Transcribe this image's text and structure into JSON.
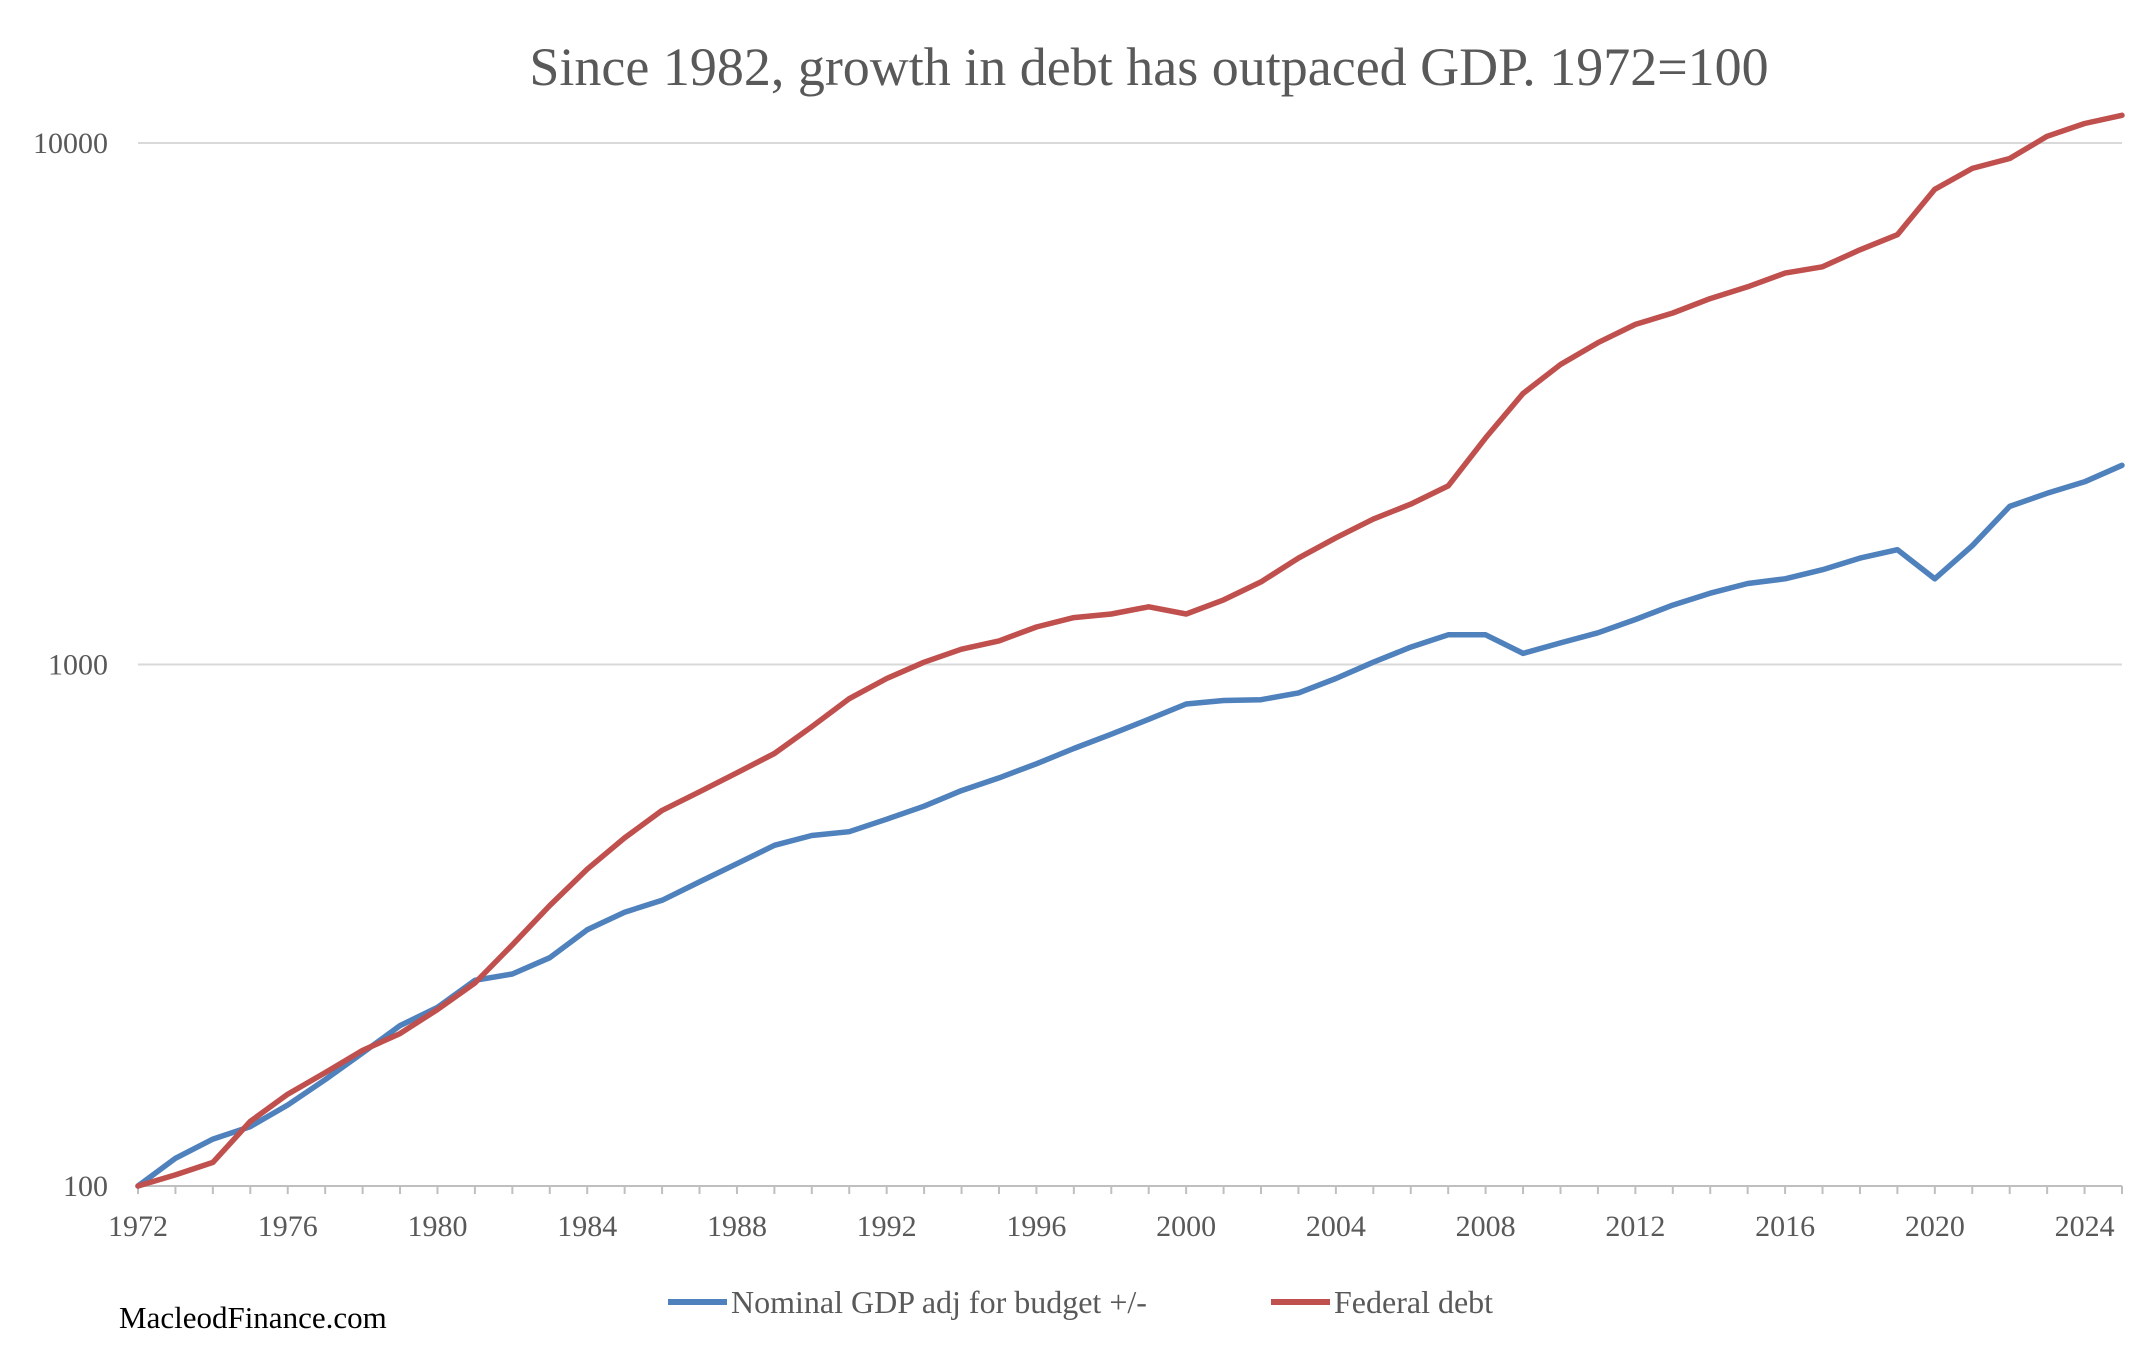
{
  "chart_data": {
    "type": "line",
    "title": "Since 1982, growth in debt has outpaced GDP. 1972=100",
    "xlabel": "",
    "ylabel": "",
    "y_scale": "log",
    "ylim": [
      100,
      10000
    ],
    "xlim": [
      1972,
      2025
    ],
    "y_ticks": [
      "100",
      "1000",
      "10000"
    ],
    "x_ticks": [
      "1972",
      "1976",
      "1980",
      "1984",
      "1988",
      "1992",
      "1996",
      "2000",
      "2004",
      "2008",
      "2012",
      "2016",
      "2020",
      "2024"
    ],
    "grid": true,
    "legend_position": "bottom",
    "x": [
      1972,
      1973,
      1974,
      1975,
      1976,
      1977,
      1978,
      1979,
      1980,
      1981,
      1982,
      1983,
      1984,
      1985,
      1986,
      1987,
      1988,
      1989,
      1990,
      1991,
      1992,
      1993,
      1994,
      1995,
      1996,
      1997,
      1998,
      1999,
      2000,
      2001,
      2002,
      2003,
      2004,
      2005,
      2006,
      2007,
      2008,
      2009,
      2010,
      2011,
      2012,
      2013,
      2014,
      2015,
      2016,
      2017,
      2018,
      2019,
      2020,
      2021,
      2022,
      2023,
      2024,
      2025
    ],
    "series": [
      {
        "name": "Nominal GDP adj for budget +/-",
        "color": "#4f81bd",
        "values": [
          100,
          113,
          123,
          130,
          143,
          160,
          180,
          203,
          220,
          248,
          255,
          274,
          310,
          335,
          353,
          383,
          415,
          450,
          470,
          478,
          505,
          535,
          573,
          606,
          645,
          690,
          735,
          785,
          840,
          853,
          856,
          882,
          940,
          1010,
          1080,
          1140,
          1140,
          1050,
          1100,
          1150,
          1220,
          1300,
          1370,
          1430,
          1460,
          1520,
          1600,
          1660,
          1460,
          1690,
          2010,
          2130,
          2240,
          2410
        ]
      },
      {
        "name": "Federal debt",
        "color": "#c0504d",
        "values": [
          100,
          105,
          111,
          133,
          150,
          165,
          182,
          196,
          218,
          245,
          290,
          345,
          405,
          465,
          525,
          570,
          620,
          675,
          760,
          860,
          940,
          1010,
          1070,
          1110,
          1180,
          1230,
          1250,
          1290,
          1250,
          1330,
          1440,
          1600,
          1750,
          1900,
          2030,
          2200,
          2720,
          3310,
          3760,
          4140,
          4490,
          4720,
          5030,
          5300,
          5630,
          5790,
          6240,
          6670,
          8150,
          8940,
          9340,
          10300,
          10900,
          11300
        ]
      }
    ]
  },
  "watermark": "MacleodFinance.com"
}
